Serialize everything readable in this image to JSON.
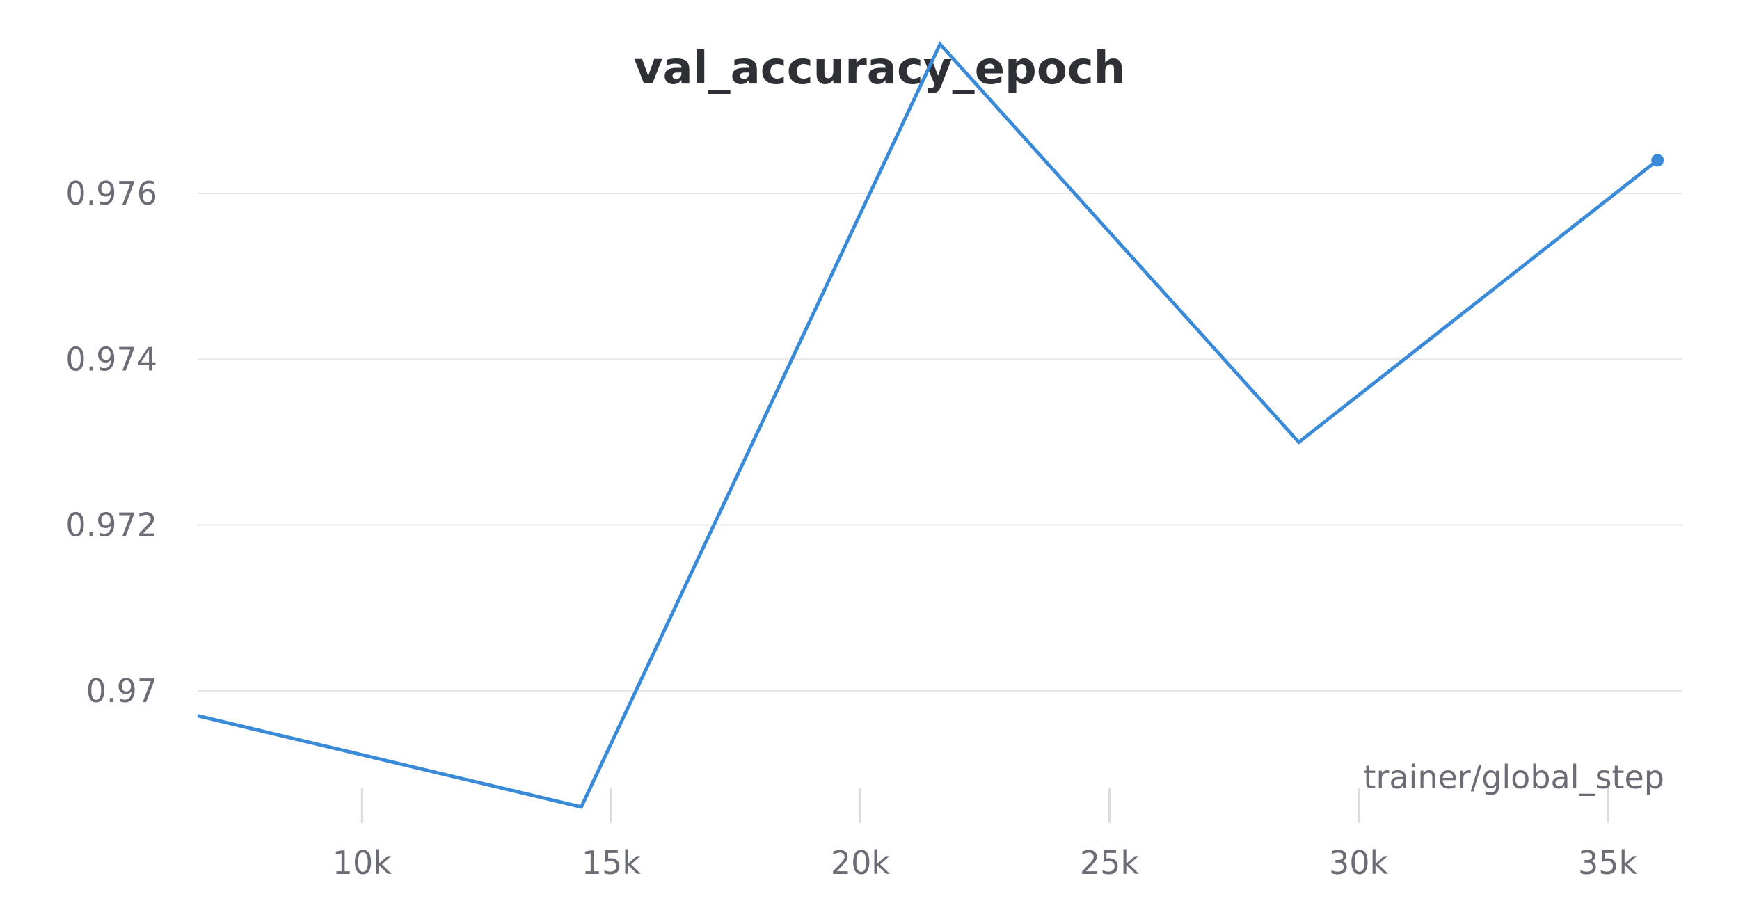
{
  "chart_data": {
    "type": "line",
    "title": "val_accuracy_epoch",
    "xlabel": "trainer/global_step",
    "ylabel": "",
    "xlim": [
      6700,
      36500
    ],
    "ylim": [
      0.9684,
      0.9778
    ],
    "x_ticks": [
      10000,
      15000,
      20000,
      25000,
      30000,
      35000
    ],
    "x_tick_labels": [
      "10k",
      "15k",
      "20k",
      "25k",
      "30k",
      "35k"
    ],
    "y_ticks": [
      0.97,
      0.972,
      0.974,
      0.976
    ],
    "y_tick_labels": [
      "0.97",
      "0.972",
      "0.974",
      "0.976"
    ],
    "grid": {
      "y": true,
      "x": false
    },
    "series": [
      {
        "color": "#3a8ad8",
        "x": [
          6700,
          14400,
          21600,
          28800,
          36000
        ],
        "y": [
          0.9697,
          0.9686,
          0.9778,
          0.973,
          0.9764
        ]
      }
    ]
  }
}
